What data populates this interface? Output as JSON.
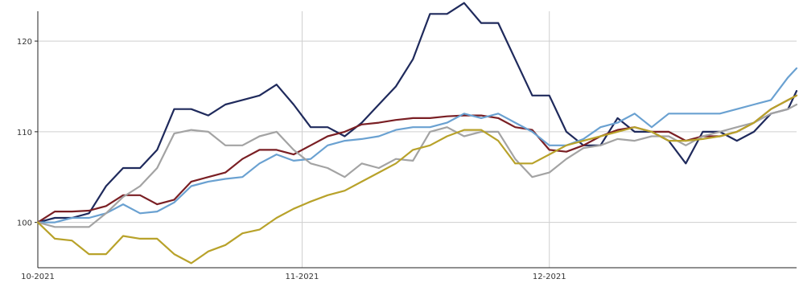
{
  "chart_data": {
    "type": "line",
    "title": "",
    "xlabel": "",
    "ylabel": "",
    "x_ticks": [
      {
        "label": "10-2021",
        "x": 0
      },
      {
        "label": "11-2021",
        "x": 31
      },
      {
        "label": "12-2021",
        "x": 60
      }
    ],
    "xlim": [
      0,
      89
    ],
    "y_ticks": [
      100,
      110,
      120
    ],
    "ylim": [
      95,
      124
    ],
    "grid": true,
    "legend": "none",
    "series": [
      {
        "color": "#1f2a5c",
        "points": [
          [
            0,
            100
          ],
          [
            2,
            100.5
          ],
          [
            4,
            100.5
          ],
          [
            6,
            101
          ],
          [
            8,
            104
          ],
          [
            10,
            106
          ],
          [
            12,
            106
          ],
          [
            14,
            108
          ],
          [
            16,
            112.5
          ],
          [
            18,
            112.5
          ],
          [
            20,
            111.8
          ],
          [
            22,
            113
          ],
          [
            24,
            113.5
          ],
          [
            26,
            114
          ],
          [
            28,
            115.2
          ],
          [
            30,
            113
          ],
          [
            32,
            110.5
          ],
          [
            34,
            110.5
          ],
          [
            36,
            109.5
          ],
          [
            38,
            111
          ],
          [
            40,
            113
          ],
          [
            42,
            115
          ],
          [
            44,
            118
          ],
          [
            46,
            123
          ],
          [
            48,
            123
          ],
          [
            50,
            124.2
          ],
          [
            52,
            122
          ],
          [
            54,
            122
          ],
          [
            56,
            118
          ],
          [
            58,
            114
          ],
          [
            60,
            114
          ],
          [
            62,
            110
          ],
          [
            64,
            108.5
          ],
          [
            66,
            108.5
          ],
          [
            68,
            111.5
          ],
          [
            70,
            110
          ],
          [
            72,
            110
          ],
          [
            74,
            109
          ],
          [
            76,
            106.5
          ],
          [
            78,
            110
          ],
          [
            80,
            110
          ],
          [
            82,
            109
          ],
          [
            84,
            110
          ],
          [
            86,
            112
          ],
          [
            88,
            112.5
          ],
          [
            89,
            114.5
          ]
        ]
      },
      {
        "color": "#7a1f24",
        "points": [
          [
            0,
            100
          ],
          [
            2,
            101.2
          ],
          [
            4,
            101.2
          ],
          [
            6,
            101.3
          ],
          [
            8,
            101.8
          ],
          [
            10,
            103
          ],
          [
            12,
            103
          ],
          [
            14,
            102
          ],
          [
            16,
            102.5
          ],
          [
            18,
            104.5
          ],
          [
            20,
            105
          ],
          [
            22,
            105.5
          ],
          [
            24,
            107
          ],
          [
            26,
            108
          ],
          [
            28,
            108
          ],
          [
            30,
            107.5
          ],
          [
            32,
            108.5
          ],
          [
            34,
            109.5
          ],
          [
            36,
            110
          ],
          [
            38,
            110.8
          ],
          [
            40,
            111
          ],
          [
            42,
            111.3
          ],
          [
            44,
            111.5
          ],
          [
            46,
            111.5
          ],
          [
            48,
            111.7
          ],
          [
            50,
            111.8
          ],
          [
            52,
            111.8
          ],
          [
            54,
            111.5
          ],
          [
            56,
            110.5
          ],
          [
            58,
            110.2
          ],
          [
            60,
            108
          ],
          [
            62,
            107.8
          ],
          [
            64,
            108.5
          ],
          [
            66,
            109.5
          ],
          [
            68,
            110.2
          ],
          [
            70,
            110.5
          ],
          [
            72,
            110
          ],
          [
            74,
            110
          ],
          [
            76,
            109
          ],
          [
            78,
            109.5
          ],
          [
            80,
            109.5
          ],
          [
            82,
            110
          ],
          [
            84,
            111
          ],
          [
            86,
            112.5
          ],
          [
            88,
            113.5
          ],
          [
            89,
            114
          ]
        ]
      },
      {
        "color": "#6aa1d1",
        "points": [
          [
            0,
            100
          ],
          [
            2,
            100
          ],
          [
            4,
            100.5
          ],
          [
            6,
            100.5
          ],
          [
            8,
            101
          ],
          [
            10,
            102
          ],
          [
            12,
            101
          ],
          [
            14,
            101.2
          ],
          [
            16,
            102.2
          ],
          [
            18,
            104
          ],
          [
            20,
            104.5
          ],
          [
            22,
            104.8
          ],
          [
            24,
            105
          ],
          [
            26,
            106.5
          ],
          [
            28,
            107.5
          ],
          [
            30,
            106.8
          ],
          [
            32,
            107
          ],
          [
            34,
            108.5
          ],
          [
            36,
            109
          ],
          [
            38,
            109.2
          ],
          [
            40,
            109.5
          ],
          [
            42,
            110.2
          ],
          [
            44,
            110.5
          ],
          [
            46,
            110.5
          ],
          [
            48,
            111
          ],
          [
            50,
            112
          ],
          [
            52,
            111.5
          ],
          [
            54,
            112
          ],
          [
            56,
            111
          ],
          [
            58,
            110
          ],
          [
            60,
            108.5
          ],
          [
            62,
            108.5
          ],
          [
            64,
            109.2
          ],
          [
            66,
            110.5
          ],
          [
            68,
            111
          ],
          [
            70,
            112
          ],
          [
            72,
            110.5
          ],
          [
            74,
            112
          ],
          [
            76,
            112
          ],
          [
            78,
            112
          ],
          [
            80,
            112
          ],
          [
            82,
            112.5
          ],
          [
            84,
            113
          ],
          [
            86,
            113.5
          ],
          [
            88,
            116
          ],
          [
            89,
            117
          ]
        ]
      },
      {
        "color": "#a3a3a3",
        "points": [
          [
            0,
            100
          ],
          [
            2,
            99.5
          ],
          [
            4,
            99.5
          ],
          [
            6,
            99.5
          ],
          [
            8,
            101
          ],
          [
            10,
            102.8
          ],
          [
            12,
            104
          ],
          [
            14,
            106
          ],
          [
            16,
            109.8
          ],
          [
            18,
            110.2
          ],
          [
            20,
            110
          ],
          [
            22,
            108.5
          ],
          [
            24,
            108.5
          ],
          [
            26,
            109.5
          ],
          [
            28,
            110
          ],
          [
            30,
            108
          ],
          [
            32,
            106.5
          ],
          [
            34,
            106
          ],
          [
            36,
            105
          ],
          [
            38,
            106.5
          ],
          [
            40,
            106
          ],
          [
            42,
            107
          ],
          [
            44,
            106.8
          ],
          [
            46,
            110
          ],
          [
            48,
            110.5
          ],
          [
            50,
            109.5
          ],
          [
            52,
            110
          ],
          [
            54,
            110
          ],
          [
            56,
            107
          ],
          [
            58,
            105
          ],
          [
            60,
            105.5
          ],
          [
            62,
            107
          ],
          [
            64,
            108.2
          ],
          [
            66,
            108.5
          ],
          [
            68,
            109.2
          ],
          [
            70,
            109
          ],
          [
            72,
            109.5
          ],
          [
            74,
            109.5
          ],
          [
            76,
            108.5
          ],
          [
            78,
            109.5
          ],
          [
            80,
            110
          ],
          [
            82,
            110.5
          ],
          [
            84,
            111
          ],
          [
            86,
            112
          ],
          [
            88,
            112.5
          ],
          [
            89,
            113
          ]
        ]
      },
      {
        "color": "#b8a22a",
        "points": [
          [
            0,
            100
          ],
          [
            2,
            98.2
          ],
          [
            4,
            98
          ],
          [
            6,
            96.5
          ],
          [
            8,
            96.5
          ],
          [
            10,
            98.5
          ],
          [
            12,
            98.2
          ],
          [
            14,
            98.2
          ],
          [
            16,
            96.5
          ],
          [
            18,
            95.5
          ],
          [
            20,
            96.8
          ],
          [
            22,
            97.5
          ],
          [
            24,
            98.8
          ],
          [
            26,
            99.2
          ],
          [
            28,
            100.5
          ],
          [
            30,
            101.5
          ],
          [
            32,
            102.3
          ],
          [
            34,
            103
          ],
          [
            36,
            103.5
          ],
          [
            38,
            104.5
          ],
          [
            40,
            105.5
          ],
          [
            42,
            106.5
          ],
          [
            44,
            108
          ],
          [
            46,
            108.5
          ],
          [
            48,
            109.5
          ],
          [
            50,
            110.2
          ],
          [
            52,
            110.2
          ],
          [
            54,
            109
          ],
          [
            56,
            106.5
          ],
          [
            58,
            106.5
          ],
          [
            60,
            107.5
          ],
          [
            62,
            108.5
          ],
          [
            64,
            109
          ],
          [
            66,
            109.5
          ],
          [
            68,
            110
          ],
          [
            70,
            110.5
          ],
          [
            72,
            110
          ],
          [
            74,
            109
          ],
          [
            76,
            109
          ],
          [
            78,
            109.2
          ],
          [
            80,
            109.5
          ],
          [
            82,
            110
          ],
          [
            84,
            111
          ],
          [
            86,
            112.5
          ],
          [
            88,
            113.5
          ],
          [
            89,
            114
          ]
        ]
      }
    ]
  }
}
